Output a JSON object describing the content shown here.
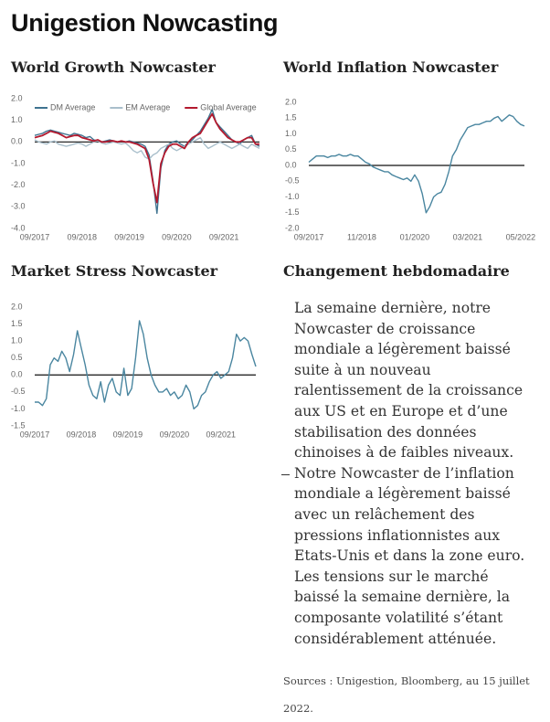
{
  "title": "Unigestion Nowcasting",
  "chart_data": [
    {
      "type": "line",
      "title": "World Growth Nowcaster",
      "legend": "top",
      "zero_line": true,
      "categories": [
        "09/2017",
        null,
        null,
        null,
        null,
        null,
        null,
        null,
        null,
        null,
        null,
        null,
        "09/2018",
        null,
        null,
        null,
        null,
        null,
        null,
        null,
        null,
        null,
        null,
        null,
        "09/2019",
        null,
        null,
        null,
        null,
        null,
        null,
        null,
        null,
        null,
        null,
        null,
        "09/2020",
        null,
        null,
        null,
        null,
        null,
        null,
        null,
        null,
        null,
        null,
        null,
        "09/2021",
        null,
        null,
        null,
        null,
        null,
        null,
        null,
        null,
        null
      ],
      "ylim": [
        -4,
        2
      ],
      "yticks": [
        {
          "value": -4,
          "label": "-4.0"
        },
        {
          "value": -3,
          "label": "-3.0"
        },
        {
          "value": -2,
          "label": "-2.0"
        },
        {
          "value": -1,
          "label": "-1.0"
        },
        {
          "value": 0,
          "label": "0.0"
        },
        {
          "value": 1,
          "label": "1.0"
        },
        {
          "value": 2,
          "label": "2.0"
        }
      ],
      "series": [
        {
          "name": "DM Average",
          "color": "#3f7390",
          "values": [
            0.3,
            0.35,
            0.4,
            0.5,
            0.55,
            0.5,
            0.45,
            0.4,
            0.35,
            0.3,
            0.4,
            0.35,
            0.3,
            0.2,
            0.25,
            0.1,
            0.05,
            0.0,
            0.05,
            0.1,
            0.05,
            0.0,
            0.05,
            0.0,
            0.05,
            0.0,
            -0.05,
            -0.1,
            -0.2,
            -0.6,
            -1.8,
            -3.3,
            -1.2,
            -0.4,
            -0.1,
            0.0,
            0.05,
            -0.1,
            -0.2,
            0.0,
            0.1,
            0.3,
            0.5,
            0.8,
            1.1,
            1.5,
            0.9,
            0.7,
            0.5,
            0.3,
            0.1,
            0.0,
            -0.1,
            0.1,
            0.2,
            0.3,
            -0.1,
            -0.2
          ]
        },
        {
          "name": "EM Average",
          "color": "#a9bfcb",
          "values": [
            0.1,
            0.0,
            -0.05,
            -0.1,
            0.0,
            0.05,
            -0.1,
            -0.15,
            -0.2,
            -0.15,
            -0.1,
            -0.05,
            -0.1,
            -0.2,
            -0.1,
            0.0,
            0.05,
            -0.05,
            -0.1,
            -0.05,
            0.0,
            -0.05,
            -0.1,
            -0.05,
            -0.2,
            -0.4,
            -0.5,
            -0.4,
            -0.7,
            -0.8,
            -0.6,
            -0.5,
            -0.3,
            -0.2,
            -0.1,
            -0.3,
            -0.4,
            -0.3,
            -0.2,
            -0.1,
            0.0,
            0.1,
            0.2,
            -0.1,
            -0.3,
            -0.2,
            -0.1,
            0.0,
            -0.1,
            -0.2,
            -0.3,
            -0.2,
            -0.1,
            -0.2,
            -0.3,
            -0.1,
            -0.2,
            -0.3
          ]
        },
        {
          "name": "Global Average",
          "color": "#b3192e",
          "values": [
            0.2,
            0.25,
            0.3,
            0.4,
            0.5,
            0.45,
            0.4,
            0.3,
            0.2,
            0.25,
            0.3,
            0.3,
            0.2,
            0.15,
            0.1,
            0.05,
            0.1,
            0.0,
            0.0,
            0.05,
            0.05,
            0.0,
            0.05,
            0.0,
            0.0,
            -0.05,
            -0.1,
            -0.2,
            -0.3,
            -0.8,
            -1.9,
            -2.8,
            -1.0,
            -0.5,
            -0.2,
            -0.1,
            -0.1,
            -0.2,
            -0.3,
            0.0,
            0.2,
            0.3,
            0.4,
            0.7,
            1.0,
            1.3,
            0.9,
            0.6,
            0.4,
            0.2,
            0.1,
            0.0,
            0.0,
            0.1,
            0.2,
            0.2,
            -0.1,
            -0.1
          ]
        }
      ]
    },
    {
      "type": "line",
      "title": "World Inflation Nowcaster",
      "zero_line": true,
      "categories": [
        "09/2017",
        null,
        null,
        null,
        null,
        null,
        null,
        null,
        null,
        null,
        null,
        null,
        null,
        null,
        "11/2018",
        null,
        null,
        null,
        null,
        null,
        null,
        null,
        null,
        null,
        null,
        null,
        null,
        null,
        "01/2020",
        null,
        null,
        null,
        null,
        null,
        null,
        null,
        null,
        null,
        null,
        null,
        null,
        null,
        "03/2021",
        null,
        null,
        null,
        null,
        null,
        null,
        null,
        null,
        null,
        null,
        null,
        null,
        null,
        "05/2022",
        null
      ],
      "ylim": [
        -2,
        2
      ],
      "yticks": [
        {
          "value": -2,
          "label": "-2.0"
        },
        {
          "value": -1.5,
          "label": "-1.5"
        },
        {
          "value": -1,
          "label": "-1.0"
        },
        {
          "value": -0.5,
          "label": "-0.5"
        },
        {
          "value": 0,
          "label": "0.0"
        },
        {
          "value": 0.5,
          "label": "0.5"
        },
        {
          "value": 1,
          "label": "1.0"
        },
        {
          "value": 1.5,
          "label": "1.5"
        },
        {
          "value": 2,
          "label": "2.0"
        }
      ],
      "series": [
        {
          "color": "#4a86a0",
          "values": [
            0.1,
            0.2,
            0.3,
            0.3,
            0.3,
            0.25,
            0.3,
            0.3,
            0.35,
            0.3,
            0.3,
            0.35,
            0.3,
            0.3,
            0.2,
            0.1,
            0.05,
            -0.05,
            -0.1,
            -0.15,
            -0.2,
            -0.2,
            -0.3,
            -0.35,
            -0.4,
            -0.45,
            -0.4,
            -0.5,
            -0.3,
            -0.5,
            -0.9,
            -1.5,
            -1.3,
            -1.0,
            -0.9,
            -0.85,
            -0.6,
            -0.2,
            0.3,
            0.5,
            0.8,
            1.0,
            1.2,
            1.25,
            1.3,
            1.3,
            1.35,
            1.4,
            1.4,
            1.5,
            1.55,
            1.4,
            1.5,
            1.6,
            1.55,
            1.4,
            1.3,
            1.25
          ]
        }
      ]
    },
    {
      "type": "line",
      "title": "Market Stress Nowcaster",
      "zero_line": true,
      "categories": [
        "09/2017",
        null,
        null,
        null,
        null,
        null,
        null,
        null,
        null,
        null,
        null,
        null,
        "09/2018",
        null,
        null,
        null,
        null,
        null,
        null,
        null,
        null,
        null,
        null,
        null,
        "09/2019",
        null,
        null,
        null,
        null,
        null,
        null,
        null,
        null,
        null,
        null,
        null,
        "09/2020",
        null,
        null,
        null,
        null,
        null,
        null,
        null,
        null,
        null,
        null,
        null,
        "09/2021",
        null,
        null,
        null,
        null,
        null,
        null,
        null,
        null,
        null
      ],
      "ylim": [
        -1.5,
        2
      ],
      "yticks": [
        {
          "value": -1.5,
          "label": "-1.5"
        },
        {
          "value": -1,
          "label": "-1.0"
        },
        {
          "value": -0.5,
          "label": "-0.5"
        },
        {
          "value": 0,
          "label": "0.0"
        },
        {
          "value": 0.5,
          "label": "0.5"
        },
        {
          "value": 1,
          "label": "1.0"
        },
        {
          "value": 1.5,
          "label": "1.5"
        },
        {
          "value": 2,
          "label": "2.0"
        }
      ],
      "series": [
        {
          "color": "#4a86a0",
          "values": [
            -0.8,
            -0.8,
            -0.9,
            -0.7,
            0.3,
            0.5,
            0.4,
            0.7,
            0.5,
            0.1,
            0.6,
            1.3,
            0.8,
            0.3,
            -0.3,
            -0.6,
            -0.7,
            -0.2,
            -0.8,
            -0.3,
            -0.1,
            -0.5,
            -0.6,
            0.2,
            -0.6,
            -0.4,
            0.5,
            1.6,
            1.2,
            0.5,
            0.0,
            -0.3,
            -0.5,
            -0.5,
            -0.4,
            -0.6,
            -0.5,
            -0.7,
            -0.6,
            -0.3,
            -0.5,
            -1.0,
            -0.9,
            -0.6,
            -0.5,
            -0.2,
            0.0,
            0.1,
            -0.1,
            0.0,
            0.1,
            0.5,
            1.2,
            1.0,
            1.1,
            1.0,
            0.6,
            0.25
          ]
        }
      ]
    }
  ],
  "summary": {
    "title": "Changement hebdomadaire",
    "items": [
      "La semaine dernière, notre Nowcaster de croissance mondiale a légèrement baissé suite à un nouveau ralentissement de la croissance aux US et en Europe et d’une stabilisation des données chinoises à de faibles niveaux.",
      "Notre Nowcaster de l’inflation mondiale a légèrement baissé avec un relâchement des pressions inflationnistes aux Etats-Unis et dans la zone euro. Les tensions sur le marché baissé la semaine dernière, la composante volatilité s’étant considérablement atténuée."
    ],
    "source": "Sources : Unigestion, Bloomberg, au 15 juillet 2022."
  }
}
